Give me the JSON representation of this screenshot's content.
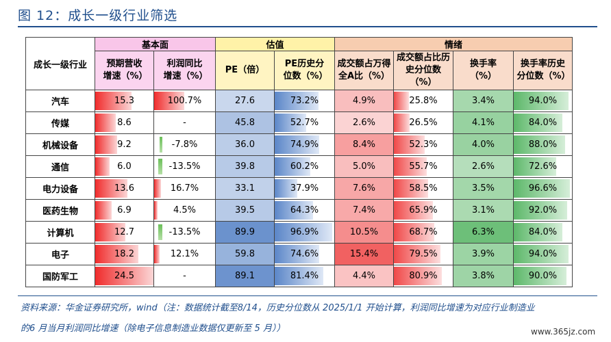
{
  "title": "图 12：成长一级行业筛选",
  "header": {
    "row_label": "成长一级行业",
    "group_basic": "基本面",
    "group_valuation": "估值",
    "group_mood": "情绪",
    "col_revenue": "预期营收增速（%）",
    "col_profit": "利润同比增速（%）",
    "col_pe": "PE（倍）",
    "col_pe_pct": "PE历史分位数（%）",
    "col_share": "成交额占万得全A比（%）",
    "col_share_pct": "成交额占比历史分位数（%）",
    "col_turnover": "换手率（%）",
    "col_turnover_pct": "换手率历史分位数（%）"
  },
  "rows": [
    {
      "name": "汽车",
      "revenue": "15.3",
      "profit": "100.7%",
      "pe": "27.6",
      "pe_pct": "73.2%",
      "share": "4.9%",
      "share_pct": "25.8%",
      "turnover": "3.4%",
      "turnover_pct": "94.0%"
    },
    {
      "name": "传媒",
      "revenue": "8.6",
      "profit": "-",
      "pe": "45.8",
      "pe_pct": "52.7%",
      "share": "2.6%",
      "share_pct": "26.5%",
      "turnover": "4.1%",
      "turnover_pct": "84.0%"
    },
    {
      "name": "机械设备",
      "revenue": "9.2",
      "profit": "-7.8%",
      "pe": "36.0",
      "pe_pct": "74.9%",
      "share": "8.4%",
      "share_pct": "52.3%",
      "turnover": "4.0%",
      "turnover_pct": "88.0%"
    },
    {
      "name": "通信",
      "revenue": "6.0",
      "profit": "-13.5%",
      "pe": "39.8",
      "pe_pct": "60.2%",
      "share": "5.0%",
      "share_pct": "55.7%",
      "turnover": "2.6%",
      "turnover_pct": "72.6%"
    },
    {
      "name": "电力设备",
      "revenue": "13.6",
      "profit": "16.7%",
      "pe": "33.1",
      "pe_pct": "37.9%",
      "share": "7.6%",
      "share_pct": "58.5%",
      "turnover": "3.5%",
      "turnover_pct": "96.6%"
    },
    {
      "name": "医药生物",
      "revenue": "6.9",
      "profit": "4.5%",
      "pe": "39.5",
      "pe_pct": "64.3%",
      "share": "7.4%",
      "share_pct": "65.9%",
      "turnover": "3.1%",
      "turnover_pct": "92.0%"
    },
    {
      "name": "计算机",
      "revenue": "12.7",
      "profit": "-13.5%",
      "pe": "89.9",
      "pe_pct": "96.9%",
      "share": "10.5%",
      "share_pct": "68.7%",
      "turnover": "6.3%",
      "turnover_pct": "84.0%"
    },
    {
      "name": "电子",
      "revenue": "18.2",
      "profit": "12.1%",
      "pe": "59.8",
      "pe_pct": "74.6%",
      "share": "15.4%",
      "share_pct": "79.5%",
      "turnover": "3.9%",
      "turnover_pct": "94.0%"
    },
    {
      "name": "国防军工",
      "revenue": "24.5",
      "profit": "-",
      "pe": "89.1",
      "pe_pct": "81.4%",
      "share": "4.4%",
      "share_pct": "80.9%",
      "turnover": "3.8%",
      "turnover_pct": "90.0%"
    }
  ],
  "source_line1": "资料来源：华金证券研究所，wind（注：数据统计截至8/14，历史分位数从 2025/1/1 开始计算，利润同比增速为对应行业制造业",
  "source_line2": "的6 月当月利润同比增速（除电子信息制造业数据仅更新至 5 月））",
  "watermark": "www.365jz.com",
  "colors": {
    "title": "#1f4e8c",
    "red_bar": "#f03a3a",
    "blue_bar": "#5b86c8",
    "green_bar": "#5db86a"
  }
}
